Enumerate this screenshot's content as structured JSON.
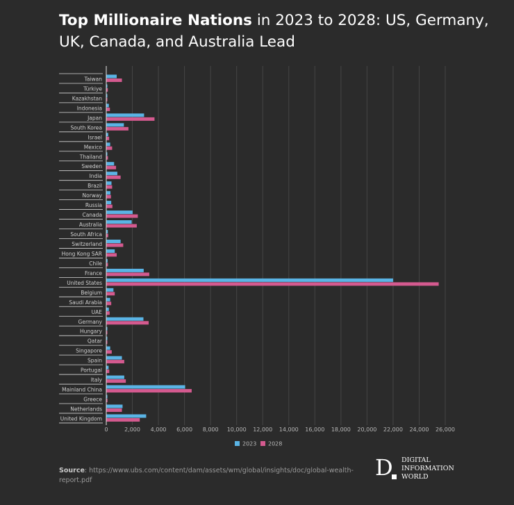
{
  "title": {
    "bold": "Top Millionaire Nations",
    "rest": " in 2023 to 2028: US, Germany, UK, Canada, and Australia Lead"
  },
  "source": {
    "label": "Source",
    "text": ": https://www.ubs.com/content/dam/assets/wm/global/insights/doc/global-wealth-report.pdf"
  },
  "logo": {
    "letter": "D",
    "lines": [
      "DIGITAL",
      "INFORMATION",
      "WORLD"
    ]
  },
  "chart_data": {
    "type": "bar",
    "orientation": "horizontal",
    "categories": [
      "Taiwan",
      "Türkiye",
      "Kazakhstan",
      "Indonesia",
      "Japan",
      "South Korea",
      "Israel",
      "Mexico",
      "Thailand",
      "Sweden",
      "India",
      "Brazil",
      "Norway",
      "Russia",
      "Canada",
      "Australia",
      "South Africa",
      "Switzerland",
      "Hong Kong SAR",
      "Chile",
      "France",
      "United States",
      "Belgium",
      "Saudi Arabia",
      "UAE",
      "Germany",
      "Hungary",
      "Qatar",
      "Singapore",
      "Spain",
      "Portugal",
      "Italy",
      "Mainland China",
      "Greece",
      "Netherlands",
      "United Kingdom"
    ],
    "series": [
      {
        "name": "2023",
        "color": "#5ab4e5",
        "values": [
          800,
          50,
          50,
          200,
          2900,
          1350,
          150,
          300,
          80,
          600,
          850,
          400,
          320,
          380,
          2020,
          1950,
          120,
          1100,
          650,
          100,
          2870,
          22000,
          550,
          300,
          200,
          2850,
          30,
          40,
          300,
          1200,
          180,
          1380,
          6050,
          80,
          1250,
          3060
        ]
      },
      {
        "name": "2028",
        "color": "#d45a8f",
        "values": [
          1200,
          120,
          80,
          280,
          3700,
          1700,
          220,
          450,
          130,
          750,
          1100,
          450,
          360,
          470,
          2420,
          2340,
          150,
          1300,
          800,
          130,
          3300,
          25500,
          650,
          380,
          260,
          3250,
          40,
          50,
          420,
          1380,
          230,
          1500,
          6550,
          90,
          1200,
          2570
        ]
      }
    ],
    "xlim": [
      0,
      27000
    ],
    "ticks": [
      0,
      2000,
      4000,
      6000,
      8000,
      10000,
      12000,
      14000,
      16000,
      18000,
      20000,
      22000,
      24000,
      26000
    ],
    "tick_labels": [
      "0",
      "2,000",
      "4,000",
      "6,000",
      "8,000",
      "10,000",
      "12,000",
      "14,000",
      "16,000",
      "18,000",
      "20,000",
      "22,000",
      "24,000",
      "26,000"
    ],
    "grid": true,
    "legend": "bottom"
  }
}
